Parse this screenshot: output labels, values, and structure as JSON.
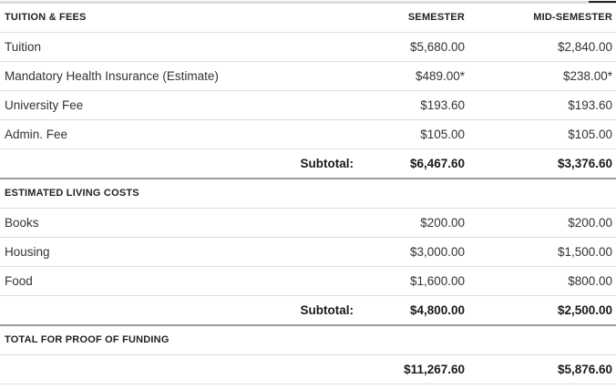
{
  "table": {
    "section1": {
      "title": "TUITION & FEES",
      "col2_header": "SEMESTER",
      "col3_header": "MID-SEMESTER",
      "rows": [
        {
          "label": "Tuition",
          "semester": "$5,680.00",
          "mid_semester": "$2,840.00"
        },
        {
          "label": "Mandatory Health Insurance (Estimate)",
          "semester": "$489.00*",
          "mid_semester": "$238.00*"
        },
        {
          "label": "University Fee",
          "semester": "$193.60",
          "mid_semester": "$193.60"
        },
        {
          "label": "Admin. Fee",
          "semester": "$105.00",
          "mid_semester": "$105.00"
        }
      ],
      "subtotal": {
        "label": "Subtotal:",
        "semester": "$6,467.60",
        "mid_semester": "$3,376.60"
      }
    },
    "section2": {
      "title": "ESTIMATED LIVING COSTS",
      "rows": [
        {
          "label": "Books",
          "semester": "$200.00",
          "mid_semester": "$200.00"
        },
        {
          "label": "Housing",
          "semester": "$3,000.00",
          "mid_semester": "$1,500.00"
        },
        {
          "label": "Food",
          "semester": "$1,600.00",
          "mid_semester": "$800.00"
        }
      ],
      "subtotal": {
        "label": "Subtotal:",
        "semester": "$4,800.00",
        "mid_semester": "$2,500.00"
      }
    },
    "section3": {
      "title": "TOTAL FOR PROOF OF FUNDING",
      "total": {
        "semester": "$11,267.60",
        "mid_semester": "$5,876.60"
      }
    }
  },
  "colors": {
    "section_border": "#9c9c9c",
    "row_border": "#dddddd",
    "top_border": "#dcdcdc",
    "text": "#333333",
    "bold_text": "#1a1a1a",
    "background": "#ffffff"
  }
}
